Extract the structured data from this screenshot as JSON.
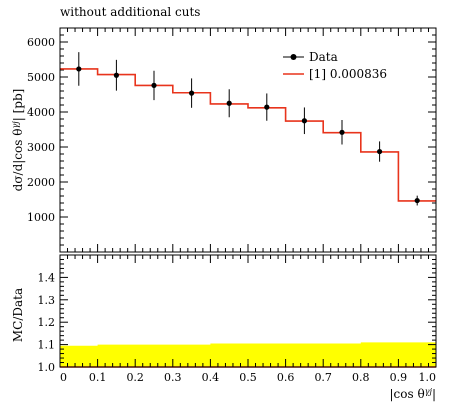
{
  "chart_data": [
    {
      "type": "step",
      "title": "without additional cuts",
      "ylabel": "dσ/d|cos θ^{γj}| [pb]",
      "xlim": [
        0,
        1
      ],
      "ylim": [
        0,
        6400
      ],
      "yticks": [
        1000,
        2000,
        3000,
        4000,
        5000,
        6000
      ],
      "bin_edges": [
        0,
        0.1,
        0.2,
        0.3,
        0.4,
        0.5,
        0.6,
        0.7,
        0.8,
        0.9,
        1.0
      ],
      "legend_position": "top-right",
      "series": [
        {
          "name": "Data",
          "style": "points-with-errorbars",
          "color": "#000000",
          "x": [
            0.05,
            0.15,
            0.25,
            0.35,
            0.45,
            0.55,
            0.65,
            0.75,
            0.85,
            0.95
          ],
          "values": [
            5230,
            5050,
            4760,
            4540,
            4250,
            4140,
            3750,
            3420,
            2870,
            1470
          ],
          "errors": [
            480,
            440,
            420,
            420,
            400,
            390,
            380,
            350,
            290,
            140
          ]
        },
        {
          "name": "[1] 0.000836",
          "style": "histogram",
          "color": "#e8341c",
          "values": [
            5230,
            5070,
            4760,
            4550,
            4230,
            4120,
            3740,
            3410,
            2860,
            1460
          ]
        }
      ]
    },
    {
      "type": "ratio",
      "ylabel": "MC/Data",
      "xlabel": "|cos θ^{γj}|",
      "xlim": [
        0,
        1
      ],
      "ylim": [
        1.0,
        1.5
      ],
      "yticks": [
        1.0,
        1.1,
        1.2,
        1.3,
        1.4
      ],
      "xticks": [
        0,
        0.1,
        0.2,
        0.3,
        0.4,
        0.5,
        0.6,
        0.7,
        0.8,
        0.9,
        1.0
      ],
      "band_color": "#ffff00",
      "band_upper": [
        1.095,
        1.1,
        1.1,
        1.1,
        1.105,
        1.105,
        1.105,
        1.105,
        1.11,
        1.11
      ],
      "band_lower": [
        1.0,
        1.0,
        1.0,
        1.0,
        1.0,
        1.0,
        1.0,
        1.0,
        1.0,
        1.0
      ],
      "ratio_values": [
        1.0,
        1.0,
        1.0,
        1.0,
        1.0,
        1.0,
        1.0,
        1.0,
        1.0,
        1.0
      ]
    }
  ]
}
